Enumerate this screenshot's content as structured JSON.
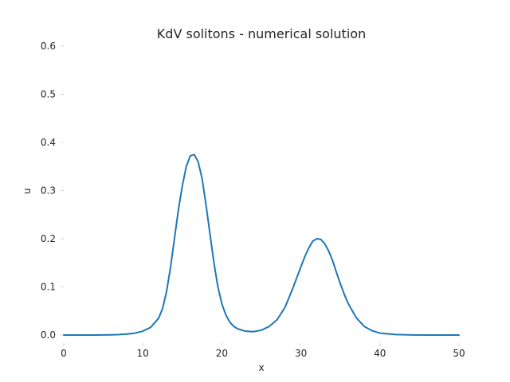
{
  "chart_data": {
    "type": "line",
    "title": "KdV solitons - numerical solution",
    "xlabel": "x",
    "ylabel": "u",
    "xlim": [
      0,
      50
    ],
    "ylim": [
      0,
      0.6
    ],
    "xticks": [
      "0",
      "10",
      "20",
      "30",
      "40",
      "50"
    ],
    "yticks": [
      "0.0",
      "0.1",
      "0.2",
      "0.3",
      "0.4",
      "0.5",
      "0.6"
    ],
    "grid": false,
    "series": [
      {
        "color": "#1f77b4",
        "x": [
          0,
          2,
          4,
          6,
          7,
          8,
          9,
          10,
          11,
          12,
          12.5,
          13,
          13.5,
          14,
          14.5,
          15,
          15.5,
          16,
          16.5,
          17,
          17.5,
          18,
          18.5,
          19,
          19.5,
          20,
          20.5,
          21,
          21.5,
          22,
          23,
          24,
          25,
          26,
          27,
          28,
          29,
          30,
          30.5,
          31,
          31.5,
          32,
          32.5,
          33,
          33.5,
          34,
          34.5,
          35,
          35.5,
          36,
          37,
          38,
          39,
          40,
          42,
          44,
          46,
          48,
          50
        ],
        "y": [
          0.0,
          0.0,
          0.0,
          0.0005,
          0.001,
          0.002,
          0.004,
          0.008,
          0.016,
          0.035,
          0.055,
          0.09,
          0.14,
          0.2,
          0.26,
          0.31,
          0.35,
          0.372,
          0.375,
          0.36,
          0.325,
          0.27,
          0.21,
          0.15,
          0.1,
          0.065,
          0.042,
          0.027,
          0.018,
          0.013,
          0.008,
          0.007,
          0.01,
          0.018,
          0.032,
          0.058,
          0.098,
          0.142,
          0.163,
          0.181,
          0.195,
          0.2,
          0.199,
          0.19,
          0.175,
          0.155,
          0.13,
          0.106,
          0.084,
          0.065,
          0.036,
          0.018,
          0.009,
          0.004,
          0.001,
          0.0003,
          0.0001,
          0.0,
          0.0
        ]
      }
    ]
  }
}
